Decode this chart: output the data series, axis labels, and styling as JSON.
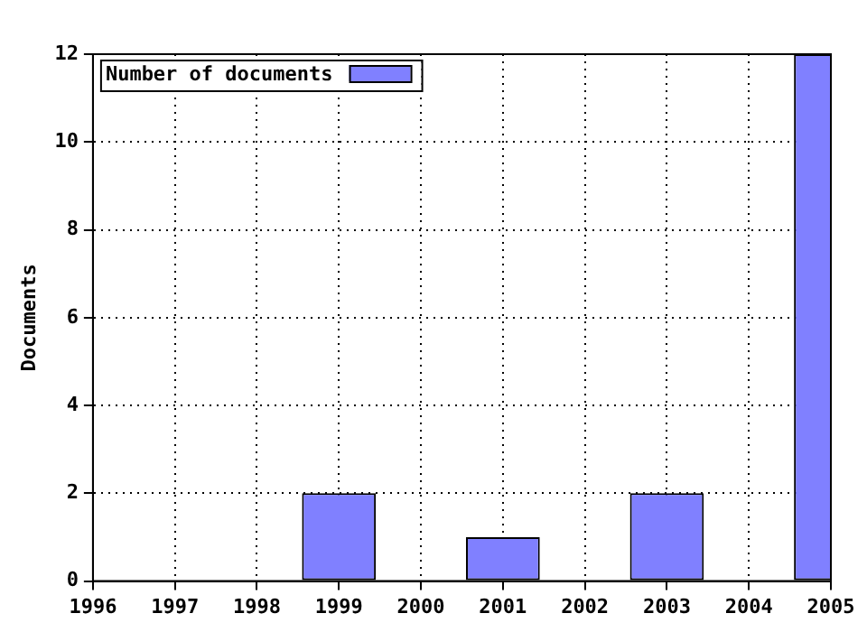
{
  "chart_data": {
    "type": "bar",
    "ylabel": "Documents",
    "x": [
      1999,
      2001,
      2003,
      2005
    ],
    "series": [
      {
        "name": "Number of documents",
        "color": "#8080ff",
        "values": [
          2,
          1,
          2,
          12
        ]
      }
    ],
    "xlim": [
      1996,
      2005
    ],
    "xticks": [
      1996,
      1997,
      1998,
      1999,
      2000,
      2001,
      2002,
      2003,
      2004,
      2005
    ],
    "ylim": [
      0,
      12
    ],
    "yticks": [
      0,
      2,
      4,
      6,
      8,
      10,
      12
    ],
    "grid": true,
    "legend": "top left"
  }
}
